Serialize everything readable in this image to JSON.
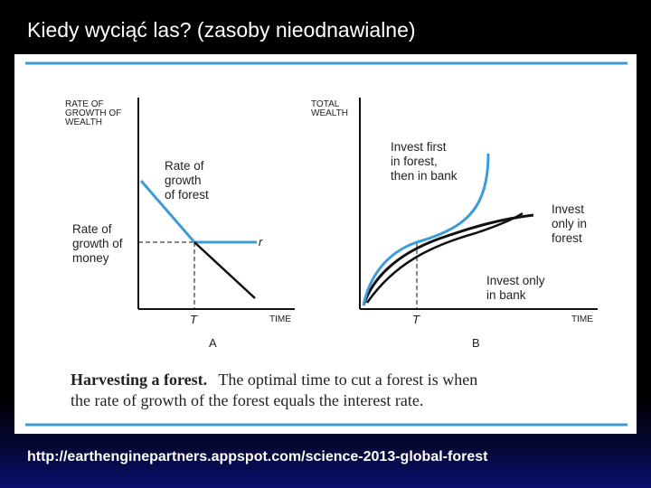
{
  "slide": {
    "title": "Kiedy wyciąć las? (zasoby nieodnawialne)",
    "source_url": "http://earthenginepartners.appspot.com/science-2013-global-forest"
  },
  "colors": {
    "accent": "#3d9bd8",
    "frame": "#3d9bd8",
    "curve_dark": "#111111"
  },
  "figure": {
    "panel_a": {
      "y_axis_label": [
        "RATE OF",
        "GROWTH OF",
        "WEALTH"
      ],
      "x_axis_label": "TIME",
      "tick_T": "T",
      "panel_letter": "A",
      "label_forest": [
        "Rate of",
        "growth",
        "of forest"
      ],
      "label_money": [
        "Rate of",
        "growth of",
        "money"
      ],
      "label_r": "r"
    },
    "panel_b": {
      "y_axis_label": [
        "TOTAL",
        "WEALTH"
      ],
      "x_axis_label": "TIME",
      "tick_T": "T",
      "panel_letter": "B",
      "label_invest_first": [
        "Invest first",
        "in forest,",
        "then in bank"
      ],
      "label_invest_forest": [
        "Invest",
        "only in",
        "forest"
      ],
      "label_invest_bank": [
        "Invest only",
        "in bank"
      ]
    },
    "caption": {
      "bold": "Harvesting a forest.",
      "line1": "The optimal time to cut a forest is when",
      "line2": "the rate of growth of the forest equals the interest rate."
    }
  }
}
